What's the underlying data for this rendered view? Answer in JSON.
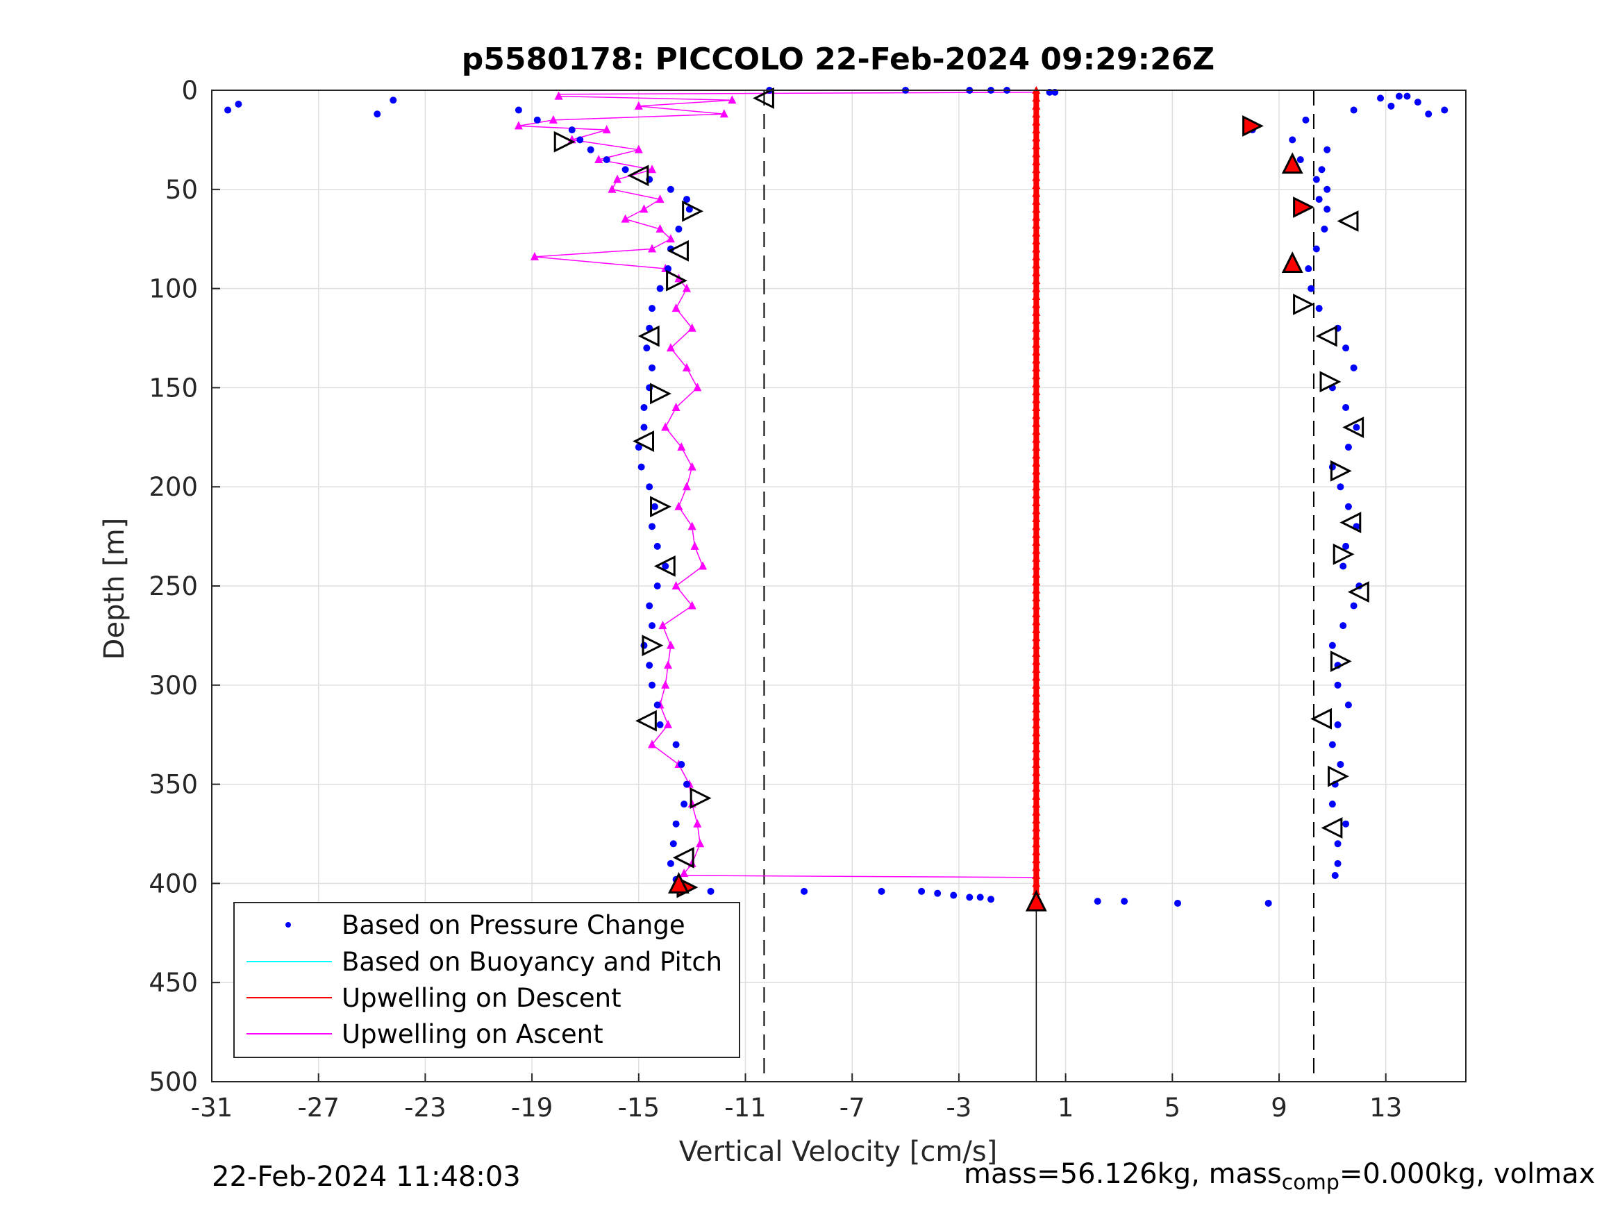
{
  "chart_data": {
    "type": "scatter",
    "title": "p5580178: PICCOLO 22-Feb-2024 09:29:26Z",
    "xlabel": "Vertical Velocity [cm/s]",
    "ylabel": "Depth [m]",
    "xlim": [
      -31,
      16
    ],
    "ylim": [
      0,
      500
    ],
    "y_reversed": true,
    "grid": true,
    "xticks": [
      -31,
      -27,
      -23,
      -19,
      -15,
      -11,
      -7,
      -3,
      1,
      5,
      9,
      13
    ],
    "yticks": [
      0,
      50,
      100,
      150,
      200,
      250,
      300,
      350,
      400,
      450,
      500
    ],
    "reference_lines": {
      "dashed_x": [
        -10.3,
        10.3
      ],
      "solid_x": [
        -0.1
      ]
    },
    "legend": {
      "position": "bottom-left",
      "entries": [
        {
          "label": "Based on Pressure Change",
          "color": "#0000ff",
          "marker": "dot"
        },
        {
          "label": "Based on Buoyancy and Pitch",
          "color": "#00ffff",
          "marker": "line"
        },
        {
          "label": "Upwelling on Descent",
          "color": "#ff0000",
          "marker": "line"
        },
        {
          "label": "Upwelling on Ascent",
          "color": "#ff00ff",
          "marker": "line"
        }
      ]
    },
    "series": [
      {
        "name": "Based on Pressure Change",
        "color": "#0000ff",
        "branches": [
          {
            "depth": [
              5,
              10,
              15,
              20,
              25,
              30,
              35,
              40,
              45,
              50,
              55,
              60,
              70,
              80,
              90,
              100,
              110,
              120,
              130,
              140,
              150,
              160,
              170,
              180,
              190,
              200,
              210,
              220,
              230,
              240,
              250,
              260,
              270,
              280,
              290,
              300,
              310,
              320,
              330,
              340,
              350,
              360,
              370,
              380,
              390,
              398
            ],
            "velocity": [
              -24.2,
              -19.5,
              -18.8,
              -17.5,
              -17.2,
              -16.8,
              -16.2,
              -15.5,
              -14.6,
              -13.8,
              -13.2,
              -13.1,
              -13.5,
              -13.8,
              -13.9,
              -14.2,
              -14.5,
              -14.6,
              -14.7,
              -14.5,
              -14.6,
              -14.8,
              -14.8,
              -15.0,
              -14.9,
              -14.6,
              -14.4,
              -14.5,
              -14.3,
              -14.0,
              -14.3,
              -14.6,
              -14.5,
              -14.8,
              -14.6,
              -14.5,
              -14.3,
              -14.2,
              -13.6,
              -13.4,
              -13.2,
              -13.3,
              -13.6,
              -13.7,
              -13.8,
              -13.6
            ]
          },
          {
            "depth": [
              10,
              15,
              20,
              25,
              30,
              35,
              40,
              45,
              50,
              55,
              60,
              70,
              80,
              90,
              100,
              110,
              120,
              130,
              140,
              150,
              160,
              170,
              180,
              190,
              200,
              210,
              220,
              230,
              240,
              250,
              260,
              270,
              280,
              290,
              300,
              310,
              320,
              330,
              340,
              350,
              360,
              370,
              380,
              390,
              396
            ],
            "velocity": [
              11.8,
              10.0,
              8.0,
              9.5,
              10.8,
              9.8,
              10.6,
              10.4,
              10.8,
              10.5,
              10.8,
              10.7,
              10.4,
              10.1,
              10.2,
              10.5,
              11.2,
              11.5,
              11.8,
              11.0,
              11.5,
              11.9,
              11.6,
              11.0,
              11.3,
              11.6,
              11.9,
              11.5,
              11.4,
              12.0,
              11.8,
              11.4,
              11.0,
              11.2,
              11.2,
              11.6,
              11.2,
              11.0,
              11.3,
              11.1,
              11.0,
              11.5,
              11.2,
              11.2,
              11.1
            ]
          },
          {
            "depth": [
              3,
              3,
              4,
              6,
              8,
              10,
              12
            ],
            "velocity": [
              13.5,
              13.8,
              12.8,
              14.2,
              13.2,
              15.2,
              14.6
            ]
          },
          {
            "depth": [
              7,
              10,
              12
            ],
            "velocity": [
              -30.0,
              -30.4,
              -24.8
            ]
          },
          {
            "depth": [
              0,
              0,
              0,
              0,
              0,
              1,
              1
            ],
            "velocity": [
              -10.1,
              -5.0,
              -2.6,
              -1.8,
              -1.2,
              0.4,
              0.6
            ]
          },
          {
            "depth": [
              404,
              404,
              404,
              404,
              405,
              406,
              407,
              407,
              408,
              409,
              409,
              410,
              410
            ],
            "velocity": [
              -12.3,
              -8.8,
              -5.9,
              -4.4,
              -3.8,
              -3.2,
              -2.6,
              -2.2,
              -1.8,
              2.2,
              3.2,
              5.2,
              8.6
            ]
          }
        ]
      },
      {
        "name": "Upwelling on Descent",
        "color": "#ff0000",
        "x": -0.1,
        "depth_range": [
          0,
          409
        ]
      },
      {
        "name": "Upwelling on Ascent",
        "color": "#ff00ff",
        "depth": [
          3,
          5,
          8,
          12,
          15,
          18,
          20,
          25,
          30,
          35,
          40,
          45,
          50,
          55,
          60,
          65,
          70,
          75,
          80,
          84,
          90,
          95,
          100,
          110,
          120,
          130,
          140,
          150,
          160,
          170,
          180,
          190,
          200,
          210,
          220,
          230,
          240,
          250,
          260,
          270,
          280,
          290,
          300,
          310,
          320,
          330,
          340,
          350,
          360,
          370,
          380,
          390,
          395
        ],
        "velocity": [
          -18.0,
          -11.5,
          -15.0,
          -11.8,
          -18.2,
          -19.5,
          -16.2,
          -17.5,
          -15.0,
          -16.5,
          -14.5,
          -15.8,
          -16.0,
          -14.2,
          -14.8,
          -15.5,
          -14.2,
          -13.8,
          -14.5,
          -18.9,
          -14.0,
          -13.5,
          -13.2,
          -13.6,
          -13.0,
          -13.8,
          -13.2,
          -12.8,
          -13.6,
          -14.0,
          -13.4,
          -13.0,
          -13.2,
          -13.5,
          -13.0,
          -12.9,
          -12.6,
          -13.6,
          -13.0,
          -14.1,
          -13.8,
          -13.9,
          -14.0,
          -14.2,
          -13.9,
          -14.5,
          -13.5,
          -13.1,
          -13.0,
          -12.8,
          -12.7,
          -13.0,
          -13.3
        ]
      }
    ],
    "markers": {
      "open_left": [
        [
          -10.3,
          4
        ],
        [
          -15.0,
          43
        ],
        [
          -13.5,
          81
        ],
        [
          -14.6,
          124
        ],
        [
          -14.8,
          177
        ],
        [
          -14.0,
          240
        ],
        [
          -14.7,
          318
        ],
        [
          -13.3,
          387
        ],
        [
          11.6,
          66
        ],
        [
          10.8,
          124
        ],
        [
          11.8,
          170
        ],
        [
          11.7,
          218
        ],
        [
          12.0,
          253
        ],
        [
          10.6,
          317
        ],
        [
          11.0,
          372
        ]
      ],
      "open_right": [
        [
          -17.8,
          26
        ],
        [
          -13.0,
          61
        ],
        [
          -13.6,
          96
        ],
        [
          -14.2,
          153
        ],
        [
          -14.2,
          210
        ],
        [
          -14.5,
          280
        ],
        [
          -12.7,
          357
        ],
        [
          9.9,
          108
        ],
        [
          10.9,
          147
        ],
        [
          11.3,
          192
        ],
        [
          11.4,
          234
        ],
        [
          11.3,
          288
        ],
        [
          11.2,
          346
        ]
      ],
      "filled_red_right": [
        [
          8.0,
          18
        ],
        [
          9.9,
          59
        ],
        [
          -13.2,
          402
        ]
      ],
      "filled_red_up": [
        [
          9.5,
          37
        ],
        [
          9.5,
          87
        ],
        [
          -13.5,
          400
        ],
        [
          -0.1,
          409
        ]
      ]
    }
  },
  "footer": {
    "timestamp": "22-Feb-2024 11:48:03",
    "mass_text": "mass=56.126kg, mass",
    "mass_sub": "comp",
    "mass_rest": "=0.000kg, volmax"
  }
}
